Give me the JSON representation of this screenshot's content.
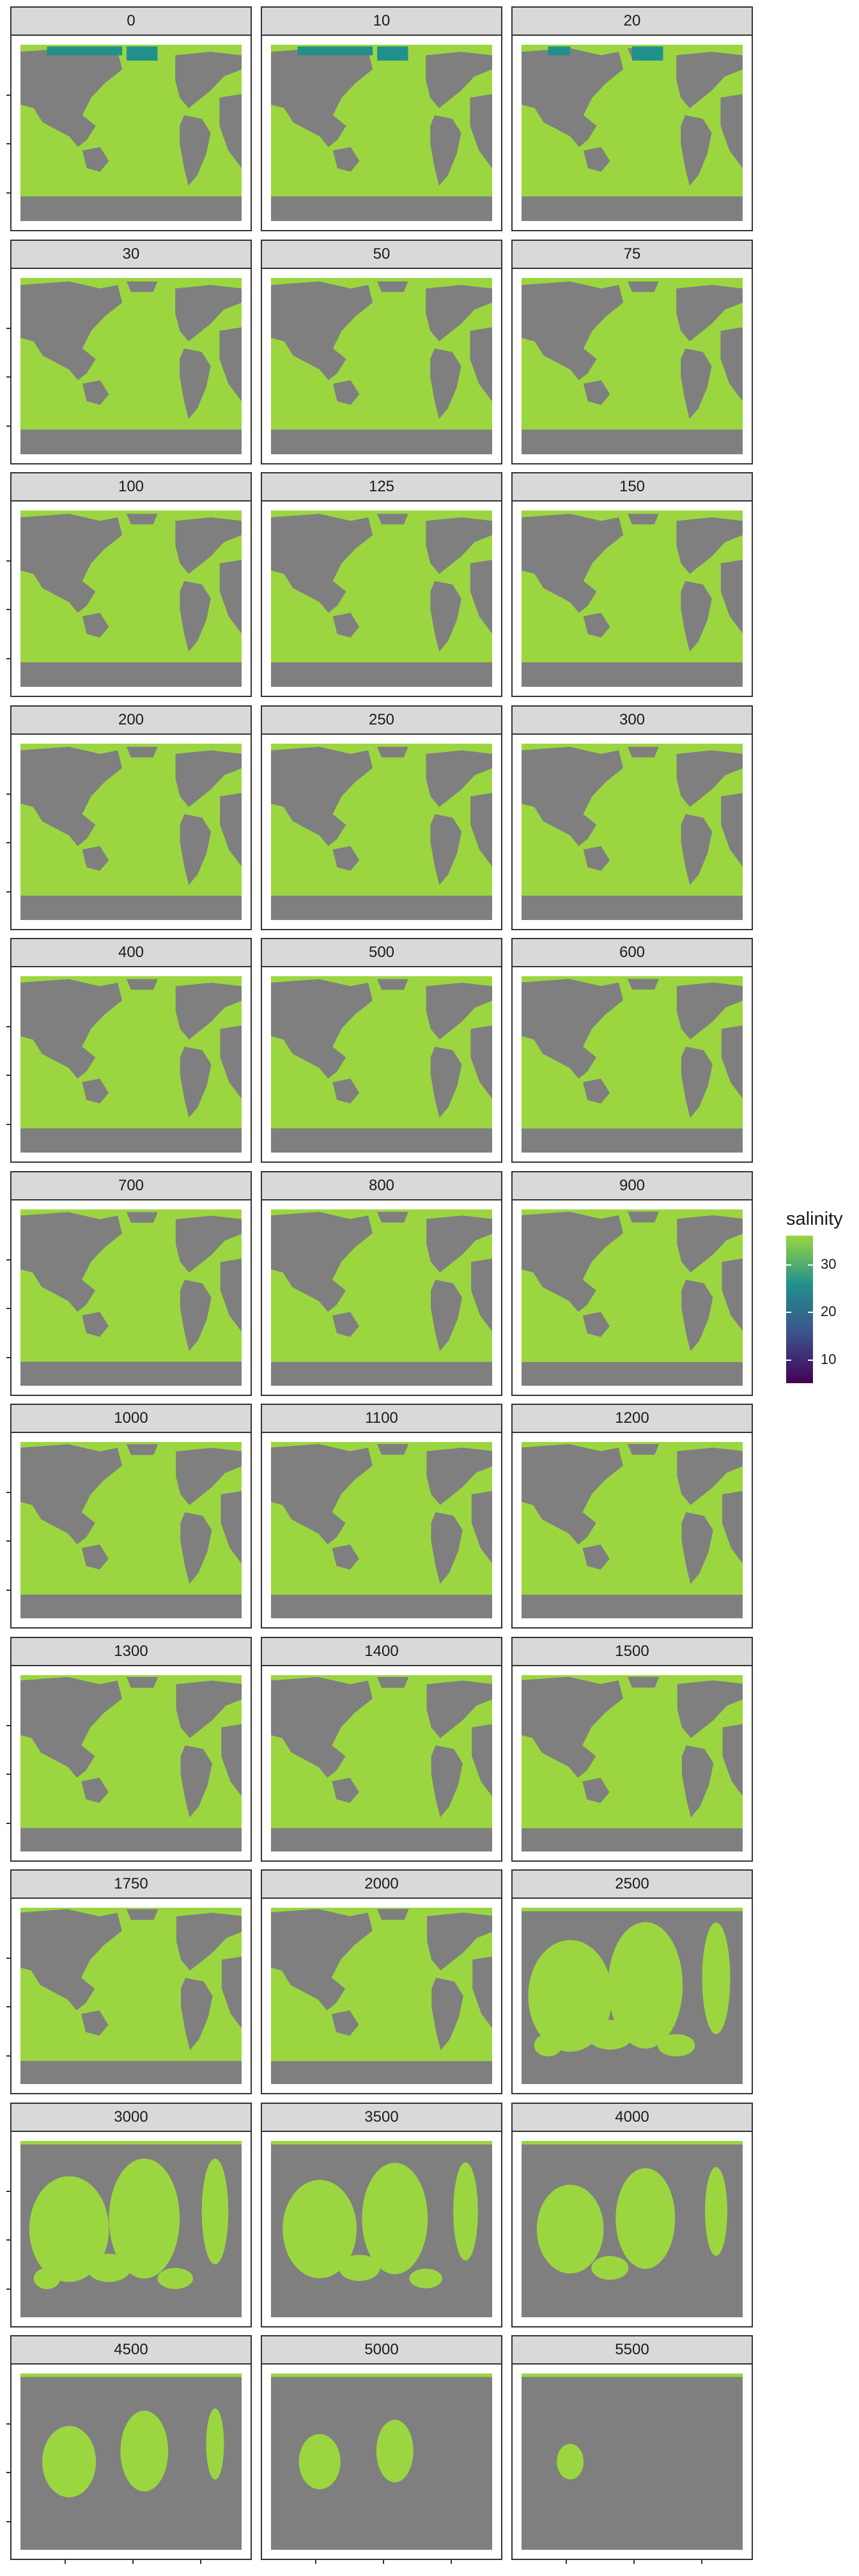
{
  "chart_data": {
    "type": "heatmap",
    "facet_variable": "depth",
    "facet_labels": [
      "0",
      "10",
      "20",
      "30",
      "50",
      "75",
      "100",
      "125",
      "150",
      "200",
      "250",
      "300",
      "400",
      "500",
      "600",
      "700",
      "800",
      "900",
      "1000",
      "1100",
      "1200",
      "1300",
      "1400",
      "1500",
      "1750",
      "2000",
      "2500",
      "3000",
      "3500",
      "4000",
      "4500",
      "5000",
      "5500"
    ],
    "fill_variable": "salinity",
    "legend": {
      "title": "salinity",
      "placement": "right",
      "breaks": [
        30,
        20,
        10
      ],
      "range": [
        5,
        36
      ],
      "colors": [
        "#440154",
        "#3b528b",
        "#21908c",
        "#9bd640"
      ]
    },
    "land_color": "#7f7f7f",
    "low_salinity_regions": [
      "0",
      "10",
      "20"
    ],
    "ocean_coverage_fraction": [
      0.62,
      0.62,
      0.62,
      0.62,
      0.62,
      0.62,
      0.61,
      0.61,
      0.61,
      0.6,
      0.6,
      0.6,
      0.59,
      0.59,
      0.58,
      0.58,
      0.57,
      0.56,
      0.56,
      0.55,
      0.55,
      0.54,
      0.54,
      0.53,
      0.52,
      0.51,
      0.49,
      0.44,
      0.38,
      0.31,
      0.2,
      0.12,
      0.05
    ],
    "grid": true,
    "xlabel": "",
    "ylabel": "",
    "title": ""
  }
}
